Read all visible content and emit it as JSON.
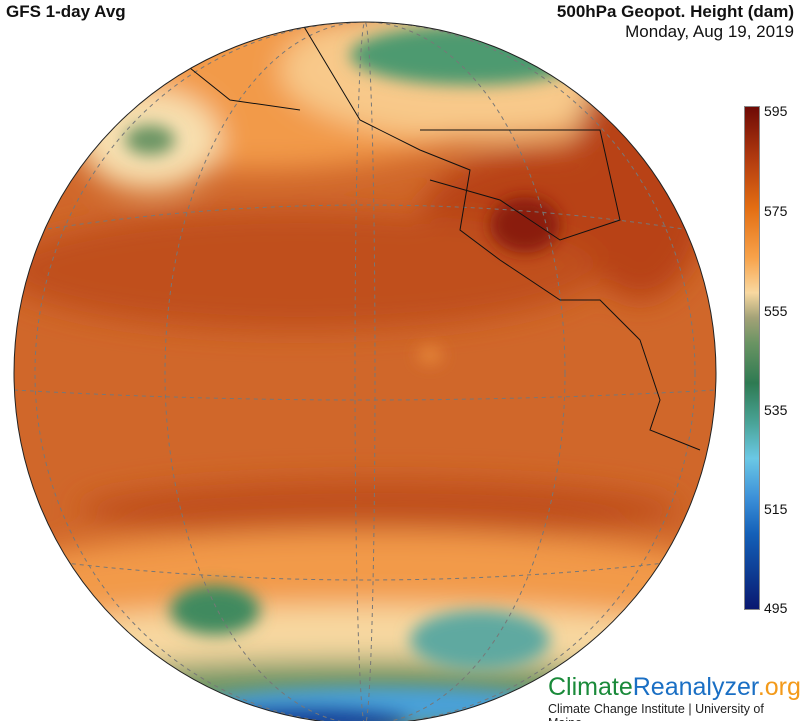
{
  "header": {
    "left_title": "GFS 1-day Avg",
    "right_title": "500hPa Geopot. Height (dam)",
    "date": "Monday, Aug 19, 2019"
  },
  "colorbar": {
    "ticks": [
      "595",
      "575",
      "555",
      "535",
      "515",
      "495"
    ],
    "min": 495,
    "max": 595,
    "colors": [
      "#6e0a05",
      "#e36d12",
      "#f8d8a0",
      "#2e7a52",
      "#6bc8e5",
      "#1460b8",
      "#0a1870"
    ]
  },
  "brand": {
    "part1": "Climate",
    "part2": "Reanalyzer",
    ".org": ".org",
    "subtitle": "Climate Change Institute | University of Maine"
  }
}
